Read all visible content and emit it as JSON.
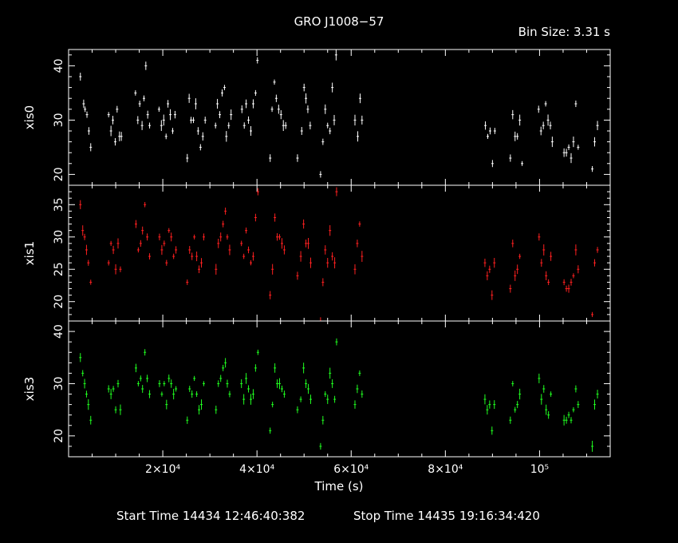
{
  "title": "GRO J1008−57",
  "bin_size_text": "Bin Size: 3.31 s",
  "footer": {
    "start": "Start Time 14434 12:46:40:382",
    "stop": "Stop Time 14435 19:16:34:420"
  },
  "chart_data": {
    "type": "scatter",
    "title": "GRO J1008−57",
    "xlabel": "Time (s)",
    "xlim": [
      0,
      115000
    ],
    "x_tick_labels": [
      "2×10⁴",
      "4×10⁴",
      "6×10⁴",
      "8×10⁴",
      "10⁵"
    ],
    "x_ticks": [
      20000,
      40000,
      60000,
      80000,
      100000
    ],
    "grid": false,
    "panels": [
      {
        "name": "xis0",
        "ylabel": "xis0",
        "color": "#ffffff",
        "ylim": [
          18,
          43
        ],
        "yticks": [
          20,
          30,
          40
        ],
        "points": [
          [
            2500,
            38
          ],
          [
            3200,
            33
          ],
          [
            3500,
            32
          ],
          [
            3900,
            31
          ],
          [
            4300,
            28
          ],
          [
            4700,
            25
          ],
          [
            8500,
            31
          ],
          [
            9000,
            28
          ],
          [
            9400,
            30
          ],
          [
            9900,
            26
          ],
          [
            10300,
            32
          ],
          [
            10800,
            27
          ],
          [
            11200,
            27
          ],
          [
            14200,
            35
          ],
          [
            14700,
            30
          ],
          [
            15100,
            33
          ],
          [
            15600,
            29
          ],
          [
            16000,
            34
          ],
          [
            16400,
            40
          ],
          [
            16800,
            31
          ],
          [
            17200,
            29
          ],
          [
            19200,
            32
          ],
          [
            19700,
            29
          ],
          [
            20200,
            30
          ],
          [
            20700,
            27
          ],
          [
            21100,
            33
          ],
          [
            21600,
            31
          ],
          [
            22100,
            28
          ],
          [
            22600,
            31
          ],
          [
            25200,
            23
          ],
          [
            25600,
            34
          ],
          [
            26000,
            30
          ],
          [
            26500,
            30
          ],
          [
            27000,
            33
          ],
          [
            27500,
            28
          ],
          [
            28000,
            25
          ],
          [
            28500,
            27
          ],
          [
            29000,
            30
          ],
          [
            31200,
            29
          ],
          [
            31600,
            33
          ],
          [
            32100,
            31
          ],
          [
            32600,
            35
          ],
          [
            33100,
            36
          ],
          [
            33500,
            27
          ],
          [
            34000,
            29
          ],
          [
            34500,
            31
          ],
          [
            36800,
            32
          ],
          [
            37300,
            29
          ],
          [
            37700,
            33
          ],
          [
            38200,
            30
          ],
          [
            38700,
            28
          ],
          [
            39200,
            33
          ],
          [
            39700,
            35
          ],
          [
            40100,
            41
          ],
          [
            42800,
            23
          ],
          [
            43200,
            32
          ],
          [
            43700,
            37
          ],
          [
            44100,
            34
          ],
          [
            44600,
            32
          ],
          [
            45100,
            31
          ],
          [
            45600,
            29
          ],
          [
            46100,
            29
          ],
          [
            48600,
            23
          ],
          [
            49500,
            28
          ],
          [
            50000,
            36
          ],
          [
            50400,
            34
          ],
          [
            50800,
            32
          ],
          [
            51300,
            29
          ],
          [
            53500,
            20
          ],
          [
            54000,
            26
          ],
          [
            54500,
            32
          ],
          [
            55000,
            29
          ],
          [
            55500,
            28
          ],
          [
            56000,
            36
          ],
          [
            56400,
            30
          ],
          [
            56800,
            42
          ],
          [
            60800,
            30
          ],
          [
            61400,
            27
          ],
          [
            61900,
            34
          ],
          [
            62300,
            30
          ],
          [
            88500,
            29
          ],
          [
            89000,
            27
          ],
          [
            89500,
            28
          ],
          [
            90000,
            22
          ],
          [
            90500,
            28
          ],
          [
            93800,
            23
          ],
          [
            94300,
            31
          ],
          [
            94800,
            27
          ],
          [
            95300,
            27
          ],
          [
            95800,
            30
          ],
          [
            96300,
            22
          ],
          [
            99800,
            32
          ],
          [
            100300,
            28
          ],
          [
            100800,
            29
          ],
          [
            101300,
            33
          ],
          [
            101800,
            30
          ],
          [
            102300,
            29
          ],
          [
            102700,
            26
          ],
          [
            105200,
            24
          ],
          [
            105700,
            24
          ],
          [
            106200,
            25
          ],
          [
            106700,
            23
          ],
          [
            107200,
            26
          ],
          [
            107700,
            33
          ],
          [
            108200,
            25
          ],
          [
            111200,
            21
          ],
          [
            111700,
            26
          ],
          [
            112300,
            29
          ]
        ]
      },
      {
        "name": "xis1",
        "ylabel": "xis1",
        "color": "#ff2020",
        "ylim": [
          17,
          38
        ],
        "yticks": [
          20,
          25,
          30,
          35
        ],
        "points": [
          [
            2500,
            35
          ],
          [
            3000,
            31
          ],
          [
            3400,
            30
          ],
          [
            3800,
            28
          ],
          [
            4200,
            26
          ],
          [
            4700,
            23
          ],
          [
            8500,
            26
          ],
          [
            9000,
            29
          ],
          [
            9500,
            28
          ],
          [
            10000,
            25
          ],
          [
            10500,
            29
          ],
          [
            11000,
            25
          ],
          [
            14300,
            32
          ],
          [
            14800,
            28
          ],
          [
            15300,
            29
          ],
          [
            15700,
            31
          ],
          [
            16200,
            35
          ],
          [
            16700,
            30
          ],
          [
            17200,
            27
          ],
          [
            19300,
            30
          ],
          [
            19800,
            28
          ],
          [
            20300,
            29
          ],
          [
            20800,
            26
          ],
          [
            21300,
            31
          ],
          [
            21800,
            30
          ],
          [
            22300,
            27
          ],
          [
            22800,
            28
          ],
          [
            25200,
            23
          ],
          [
            25700,
            28
          ],
          [
            26200,
            27
          ],
          [
            26700,
            30
          ],
          [
            27200,
            27
          ],
          [
            27700,
            25
          ],
          [
            28200,
            26
          ],
          [
            28700,
            30
          ],
          [
            31300,
            25
          ],
          [
            31800,
            29
          ],
          [
            32300,
            30
          ],
          [
            32800,
            32
          ],
          [
            33300,
            34
          ],
          [
            33700,
            30
          ],
          [
            34200,
            28
          ],
          [
            36700,
            29
          ],
          [
            37200,
            27
          ],
          [
            37700,
            31
          ],
          [
            38200,
            28
          ],
          [
            38700,
            26
          ],
          [
            39200,
            27
          ],
          [
            39700,
            33
          ],
          [
            40200,
            37
          ],
          [
            42800,
            21
          ],
          [
            43300,
            25
          ],
          [
            43800,
            33
          ],
          [
            44300,
            30
          ],
          [
            44800,
            30
          ],
          [
            45300,
            29
          ],
          [
            45800,
            28
          ],
          [
            48600,
            24
          ],
          [
            49300,
            27
          ],
          [
            49900,
            32
          ],
          [
            50400,
            29
          ],
          [
            50900,
            29
          ],
          [
            51400,
            26
          ],
          [
            53500,
            17
          ],
          [
            54000,
            23
          ],
          [
            54500,
            28
          ],
          [
            55000,
            26
          ],
          [
            55500,
            31
          ],
          [
            56000,
            27
          ],
          [
            56500,
            26
          ],
          [
            56900,
            37
          ],
          [
            60800,
            25
          ],
          [
            61300,
            29
          ],
          [
            61800,
            32
          ],
          [
            62300,
            27
          ],
          [
            88400,
            26
          ],
          [
            88900,
            24
          ],
          [
            89400,
            25
          ],
          [
            89900,
            21
          ],
          [
            90400,
            26
          ],
          [
            93800,
            22
          ],
          [
            94300,
            29
          ],
          [
            94800,
            24
          ],
          [
            95300,
            25
          ],
          [
            95800,
            27
          ],
          [
            99900,
            30
          ],
          [
            100400,
            26
          ],
          [
            100900,
            28
          ],
          [
            101400,
            24
          ],
          [
            101900,
            23
          ],
          [
            102400,
            27
          ],
          [
            105200,
            23
          ],
          [
            105700,
            22
          ],
          [
            106200,
            22
          ],
          [
            106700,
            23
          ],
          [
            107200,
            24
          ],
          [
            107700,
            28
          ],
          [
            108200,
            25
          ],
          [
            111200,
            18
          ],
          [
            111700,
            26
          ],
          [
            112300,
            28
          ]
        ]
      },
      {
        "name": "xis3",
        "ylabel": "xis3",
        "color": "#20ff20",
        "ylim": [
          16,
          42
        ],
        "yticks": [
          20,
          30,
          40
        ],
        "points": [
          [
            2500,
            35
          ],
          [
            3000,
            32
          ],
          [
            3400,
            30
          ],
          [
            3800,
            28
          ],
          [
            4200,
            26
          ],
          [
            4700,
            23
          ],
          [
            8500,
            29
          ],
          [
            9000,
            28
          ],
          [
            9500,
            29
          ],
          [
            10000,
            25
          ],
          [
            10500,
            30
          ],
          [
            11000,
            25
          ],
          [
            14300,
            33
          ],
          [
            14800,
            30
          ],
          [
            15300,
            31
          ],
          [
            15700,
            29
          ],
          [
            16200,
            36
          ],
          [
            16700,
            31
          ],
          [
            17200,
            28
          ],
          [
            19300,
            30
          ],
          [
            19800,
            28
          ],
          [
            20300,
            30
          ],
          [
            20800,
            26
          ],
          [
            21300,
            31
          ],
          [
            21800,
            30
          ],
          [
            22300,
            28
          ],
          [
            22800,
            29
          ],
          [
            25200,
            23
          ],
          [
            25700,
            29
          ],
          [
            26200,
            28
          ],
          [
            26700,
            31
          ],
          [
            27200,
            28
          ],
          [
            27700,
            25
          ],
          [
            28200,
            26
          ],
          [
            28700,
            30
          ],
          [
            31300,
            25
          ],
          [
            31800,
            30
          ],
          [
            32300,
            31
          ],
          [
            32800,
            33
          ],
          [
            33300,
            34
          ],
          [
            33700,
            30
          ],
          [
            34200,
            28
          ],
          [
            36700,
            30
          ],
          [
            37200,
            27
          ],
          [
            37700,
            31
          ],
          [
            38200,
            29
          ],
          [
            38700,
            27
          ],
          [
            39200,
            28
          ],
          [
            39700,
            33
          ],
          [
            40200,
            36
          ],
          [
            42800,
            21
          ],
          [
            43300,
            26
          ],
          [
            43800,
            33
          ],
          [
            44300,
            30
          ],
          [
            44800,
            30
          ],
          [
            45300,
            29
          ],
          [
            45800,
            28
          ],
          [
            48600,
            25
          ],
          [
            49300,
            27
          ],
          [
            49900,
            33
          ],
          [
            50400,
            30
          ],
          [
            50900,
            29
          ],
          [
            51400,
            27
          ],
          [
            53500,
            18
          ],
          [
            54000,
            23
          ],
          [
            54500,
            28
          ],
          [
            55000,
            27
          ],
          [
            55500,
            32
          ],
          [
            56000,
            30
          ],
          [
            56500,
            27
          ],
          [
            56900,
            38
          ],
          [
            60800,
            26
          ],
          [
            61300,
            29
          ],
          [
            61800,
            32
          ],
          [
            62300,
            28
          ],
          [
            88400,
            27
          ],
          [
            88900,
            25
          ],
          [
            89400,
            26
          ],
          [
            89900,
            21
          ],
          [
            90400,
            26
          ],
          [
            93800,
            23
          ],
          [
            94300,
            30
          ],
          [
            94800,
            25
          ],
          [
            95300,
            26
          ],
          [
            95800,
            28
          ],
          [
            99900,
            31
          ],
          [
            100400,
            27
          ],
          [
            100900,
            29
          ],
          [
            101400,
            25
          ],
          [
            101900,
            24
          ],
          [
            102400,
            28
          ],
          [
            105200,
            23
          ],
          [
            105700,
            23
          ],
          [
            106200,
            24
          ],
          [
            106700,
            23
          ],
          [
            107200,
            25
          ],
          [
            107700,
            29
          ],
          [
            108200,
            26
          ],
          [
            111200,
            18
          ],
          [
            111700,
            26
          ],
          [
            112300,
            28
          ]
        ]
      }
    ]
  }
}
